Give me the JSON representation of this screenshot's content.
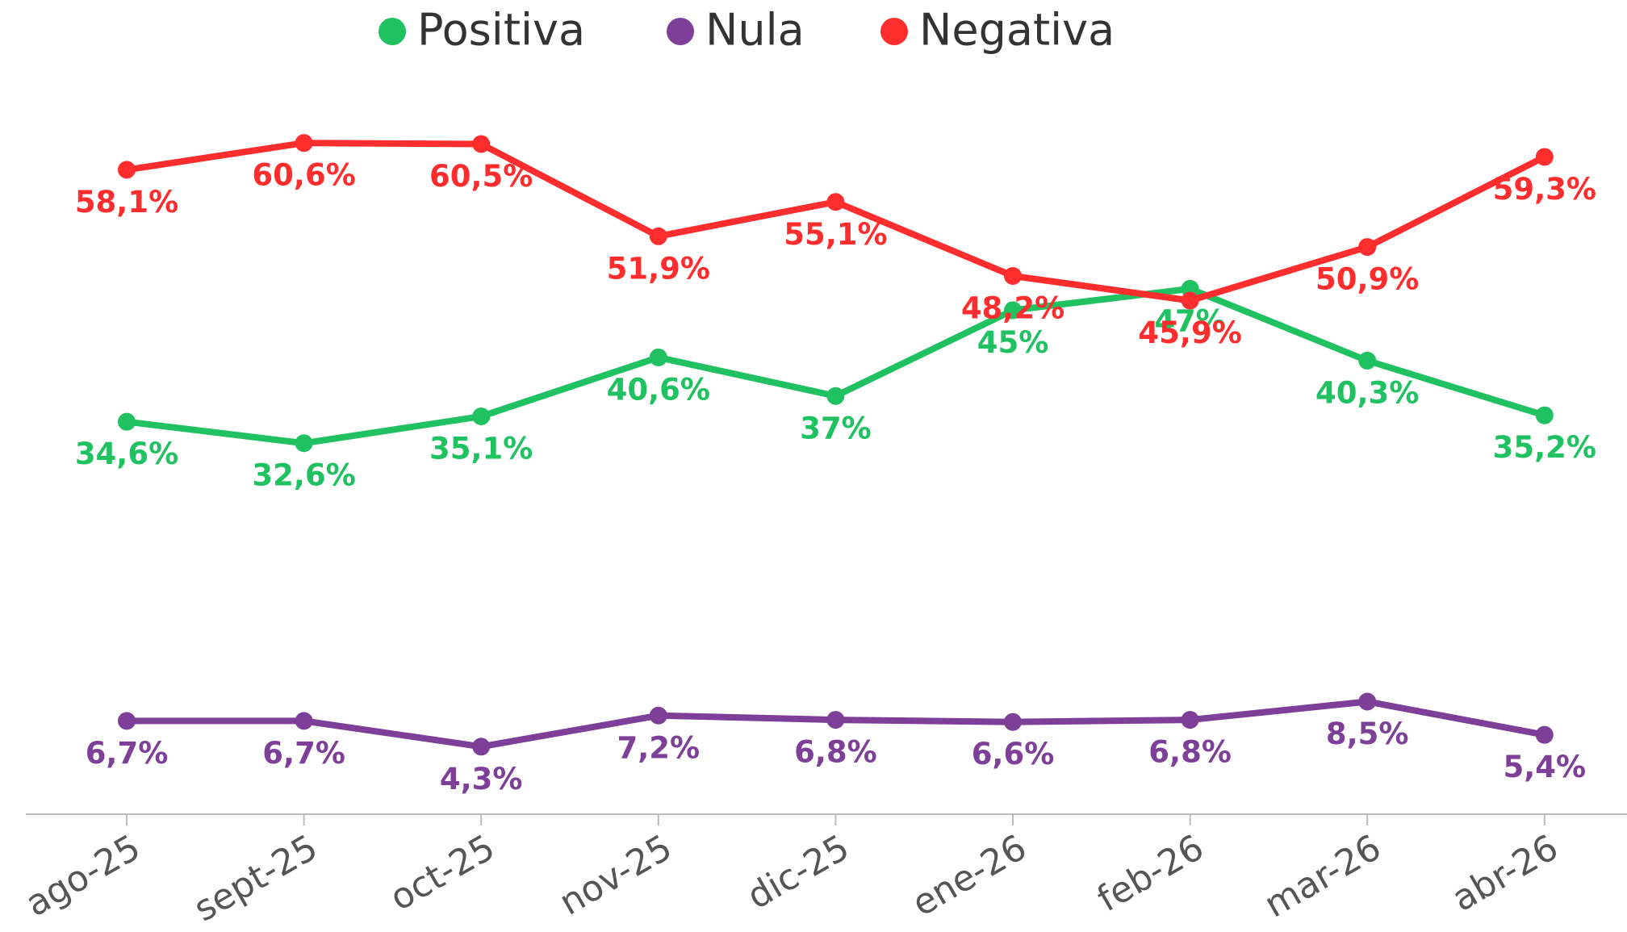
{
  "chart_data": {
    "type": "line",
    "categories": [
      "ago-25",
      "sept-25",
      "oct-25",
      "nov-25",
      "dic-25",
      "ene-26",
      "feb-26",
      "mar-26",
      "abr-26"
    ],
    "series": [
      {
        "name": "Positiva",
        "color": "#1fc160",
        "values": [
          34.6,
          32.6,
          35.1,
          40.6,
          37,
          45,
          47,
          40.3,
          35.2
        ],
        "value_labels": [
          "34,6%",
          "32,6%",
          "35,1%",
          "40,6%",
          "37%",
          "45%",
          "47%",
          "40,3%",
          "35,2%"
        ]
      },
      {
        "name": "Nula",
        "color": "#7d3f98",
        "values": [
          6.7,
          6.7,
          4.3,
          7.2,
          6.8,
          6.6,
          6.8,
          8.5,
          5.4
        ],
        "value_labels": [
          "6,7%",
          "6,7%",
          "4,3%",
          "7,2%",
          "6,8%",
          "6,6%",
          "6,8%",
          "8,5%",
          "5,4%"
        ]
      },
      {
        "name": "Negativa",
        "color": "#ff2d2d",
        "values": [
          58.1,
          60.6,
          60.5,
          51.9,
          55.1,
          48.2,
          45.9,
          50.9,
          59.3
        ],
        "value_labels": [
          "58,1%",
          "60,6%",
          "60,5%",
          "51,9%",
          "55,1%",
          "48,2%",
          "45,9%",
          "50,9%",
          "59,3%"
        ]
      }
    ],
    "ylim": [
      -2,
      64
    ],
    "grid": false,
    "legend": "top"
  }
}
